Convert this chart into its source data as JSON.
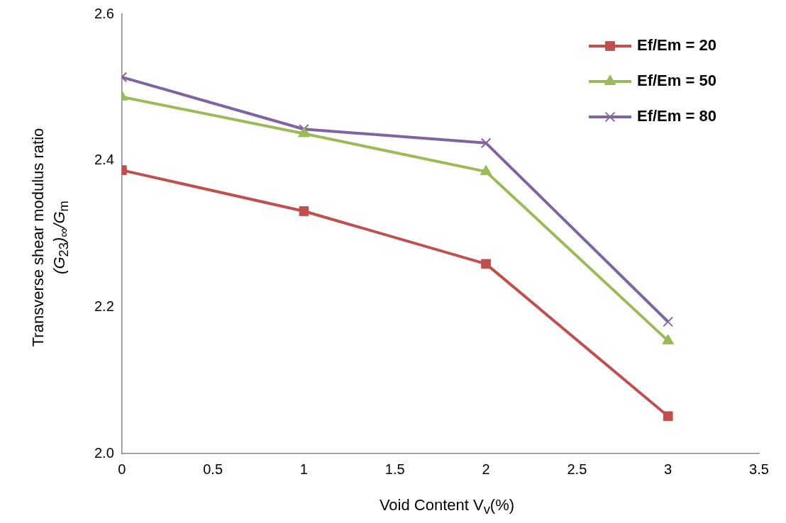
{
  "chart_data": {
    "type": "line",
    "xlabel": "Void Content V$_{v}$(%)",
    "ylabel": "Transverse shear modulus ratio\n(G$_{23}$)$_{∞}$/G$_{m}$",
    "x": [
      0,
      1,
      2,
      3
    ],
    "xlim": [
      0,
      3.5
    ],
    "xticks": [
      0,
      0.5,
      1,
      1.5,
      2,
      2.5,
      3,
      3.5
    ],
    "ylim": [
      2.0,
      2.6
    ],
    "yticks": [
      {
        "value": 2.0,
        "label": "2.0"
      },
      {
        "value": 2.2,
        "label": "2.2"
      },
      {
        "value": 2.4,
        "label": "2.4"
      },
      {
        "value": 2.6,
        "label": "2.6"
      }
    ],
    "grid": false,
    "legend": "top right",
    "line_style": "solid",
    "series": [
      {
        "name": "Ef/Em = 20",
        "color": "#c0504d",
        "marker": "square",
        "values": [
          2.387,
          2.331,
          2.259,
          2.051
        ]
      },
      {
        "name": "Ef/Em = 50",
        "color": "#9bbb59",
        "marker": "triangle",
        "values": [
          2.487,
          2.437,
          2.385,
          2.154
        ]
      },
      {
        "name": "Ef/Em = 80",
        "color": "#8064a2",
        "marker": "cross",
        "values": [
          2.514,
          2.443,
          2.424,
          2.18
        ]
      }
    ]
  }
}
